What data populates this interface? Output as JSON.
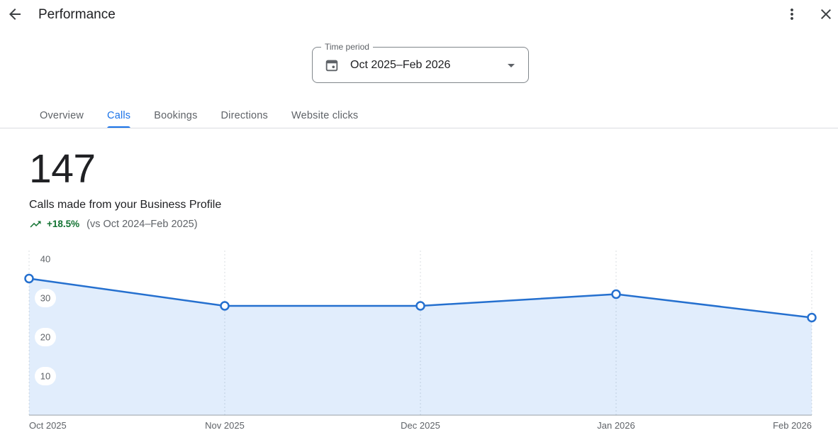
{
  "header": {
    "title": "Performance"
  },
  "time_period": {
    "label": "Time period",
    "value": "Oct 2025–Feb 2026"
  },
  "tabs": [
    {
      "label": "Overview",
      "active": false
    },
    {
      "label": "Calls",
      "active": true
    },
    {
      "label": "Bookings",
      "active": false
    },
    {
      "label": "Directions",
      "active": false
    },
    {
      "label": "Website clicks",
      "active": false
    }
  ],
  "stat": {
    "value": "147",
    "description": "Calls made from your Business Profile",
    "trend_percent": "+18.5%",
    "comparison": "(vs Oct 2024–Feb 2025)"
  },
  "colors": {
    "accent_blue": "#1a73e8",
    "chart_line": "#2570cf",
    "chart_area": "rgba(26,115,232,0.13)",
    "positive_green": "#137333",
    "text_primary": "#202124",
    "text_secondary": "#5f6368",
    "gridline": "#dadce0",
    "axis_line": "#9aa0a6"
  },
  "chart_data": {
    "type": "area",
    "title": "Calls made from your Business Profile",
    "categories": [
      "Oct 2025",
      "Nov 2025",
      "Dec 2025",
      "Jan 2026",
      "Feb 2026"
    ],
    "values": [
      35,
      28,
      28,
      31,
      25
    ],
    "xlabel": "",
    "ylabel": "",
    "ylim": [
      0,
      40
    ],
    "yticks": [
      10,
      20,
      30,
      40
    ],
    "grid": "vertical-dashed",
    "legend": "none",
    "markers": "open-circle"
  }
}
